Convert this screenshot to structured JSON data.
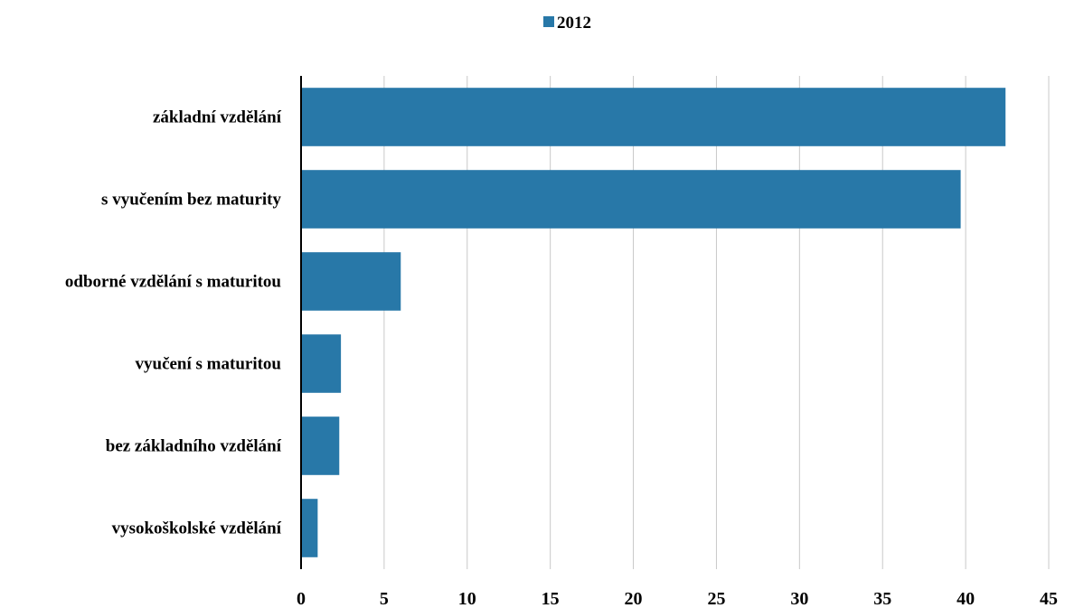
{
  "chart_data": {
    "type": "bar",
    "orientation": "horizontal",
    "categories": [
      "základní vzdělání",
      "s vyučením bez maturity",
      "odborné vzdělání s maturitou",
      "vyučení s maturitou",
      "bez základního vzdělání",
      "vysokoškolské vzdělání"
    ],
    "series": [
      {
        "name": "2012",
        "color": "#2878a8",
        "values": [
          42.4,
          39.7,
          6.0,
          2.4,
          2.3,
          1.0
        ]
      }
    ],
    "xticks": [
      0,
      5,
      10,
      15,
      20,
      25,
      30,
      35,
      40,
      45
    ],
    "xlim": [
      0,
      45
    ],
    "grid": "vertical",
    "legend_position": "top-center"
  }
}
